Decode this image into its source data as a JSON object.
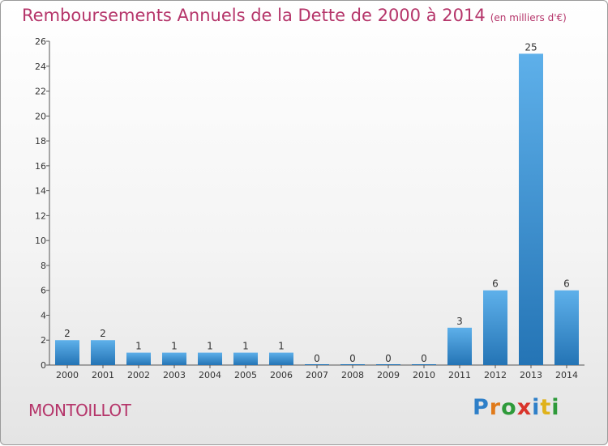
{
  "title": "Remboursements Annuels de la Dette de 2000 à 2014",
  "subtitle": "(en milliers d'€)",
  "commune": "MONTOILLOT",
  "logo": {
    "text": "Proxiti",
    "colors": [
      "#2e7fc8",
      "#e07a1a",
      "#2e9a3a",
      "#d9342b",
      "#2e7fc8",
      "#e0b21a",
      "#2e9a3a"
    ]
  },
  "colors": {
    "bar_top": "#5eb0ea",
    "bar_bottom": "#2474b5",
    "title": "#b5356a"
  },
  "chart_data": {
    "type": "bar",
    "title": "Remboursements Annuels de la Dette de 2000 à 2014",
    "categories": [
      "2000",
      "2001",
      "2002",
      "2003",
      "2004",
      "2005",
      "2006",
      "2007",
      "2008",
      "2009",
      "2010",
      "2011",
      "2012",
      "2013",
      "2014"
    ],
    "values": [
      2,
      2,
      1,
      1,
      1,
      1,
      1,
      0,
      0,
      0,
      0,
      3,
      6,
      25,
      6
    ],
    "data_labels": [
      "2",
      "2",
      "1",
      "1",
      "1",
      "1",
      "1",
      "0",
      "0",
      "0",
      "0",
      "3",
      "6",
      "25",
      "6"
    ],
    "ylim": [
      0,
      26
    ],
    "yticks": [
      0,
      2,
      4,
      6,
      8,
      10,
      12,
      14,
      16,
      18,
      20,
      22,
      24,
      26
    ],
    "grid": false
  }
}
